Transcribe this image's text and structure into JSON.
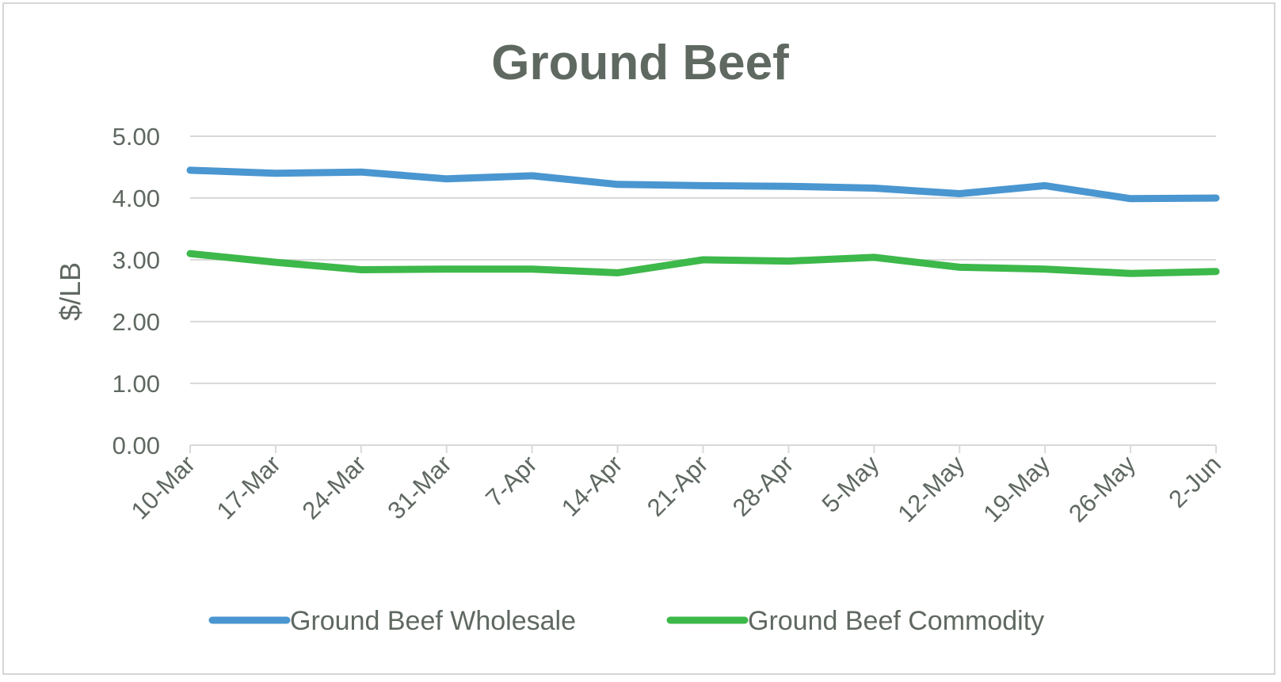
{
  "chart_data": {
    "type": "line",
    "title": "Ground Beef",
    "xlabel": "",
    "ylabel": "$/LB",
    "categories": [
      "10-Mar",
      "17-Mar",
      "24-Mar",
      "31-Mar",
      "7-Apr",
      "14-Apr",
      "21-Apr",
      "28-Apr",
      "5-May",
      "12-May",
      "19-May",
      "26-May",
      "2-Jun"
    ],
    "yticks": [
      "0.00",
      "1.00",
      "2.00",
      "3.00",
      "4.00",
      "5.00"
    ],
    "ylim": [
      0,
      5
    ],
    "grid": true,
    "legend_position": "bottom",
    "series": [
      {
        "name": "Ground Beef Wholesale",
        "color": "#4a96d0",
        "values": [
          4.45,
          4.4,
          4.42,
          4.31,
          4.36,
          4.22,
          4.2,
          4.19,
          4.16,
          4.07,
          4.2,
          3.99,
          4.0
        ]
      },
      {
        "name": "Ground Beef Commodity",
        "color": "#3db84a",
        "values": [
          3.1,
          2.96,
          2.84,
          2.85,
          2.85,
          2.79,
          3.0,
          2.98,
          3.04,
          2.88,
          2.85,
          2.78,
          2.81
        ]
      }
    ]
  }
}
